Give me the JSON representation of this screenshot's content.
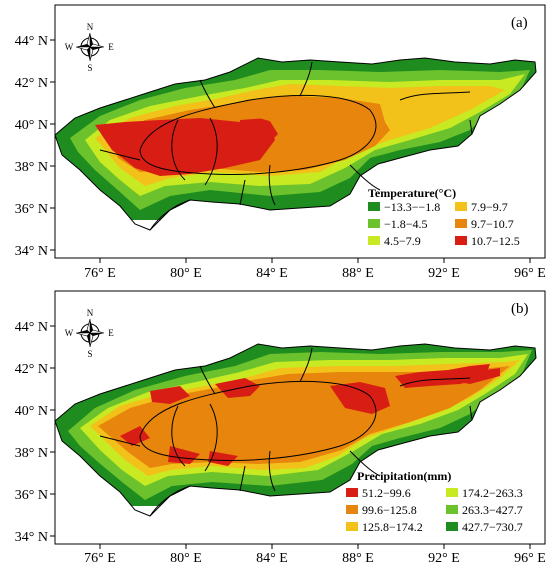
{
  "panels": [
    {
      "label": "(a)",
      "legend_title": "Temperature(°C)",
      "legend": [
        {
          "label": "−13.3−−1.8",
          "color": "#1e8c1e"
        },
        {
          "label": "7.9−9.7",
          "color": "#f2c21a"
        },
        {
          "label": "−1.8−4.5",
          "color": "#6cc22c"
        },
        {
          "label": "9.7−10.7",
          "color": "#e8850c"
        },
        {
          "label": "4.5−7.9",
          "color": "#c8ea22"
        },
        {
          "label": "10.7−12.5",
          "color": "#d81e14"
        }
      ]
    },
    {
      "label": "(b)",
      "legend_title": "Precipitation(mm)",
      "legend": [
        {
          "label": "51.2−99.6",
          "color": "#d81e14"
        },
        {
          "label": "174.2−263.3",
          "color": "#c8ea22"
        },
        {
          "label": "99.6−125.8",
          "color": "#e8850c"
        },
        {
          "label": "263.3−427.7",
          "color": "#6cc22c"
        },
        {
          "label": "125.8−174.2",
          "color": "#f2c21a"
        },
        {
          "label": "427.7−730.7",
          "color": "#1e8c1e"
        }
      ]
    }
  ],
  "lat_ticks": [
    "44° N",
    "42° N",
    "40° N",
    "38° N",
    "36° N",
    "34° N"
  ],
  "lon_ticks": [
    "76° E",
    "80° E",
    "84° E",
    "88° E",
    "92° E",
    "96° E"
  ],
  "compass": {
    "n": "N",
    "s": "S",
    "e": "E",
    "w": "W"
  }
}
